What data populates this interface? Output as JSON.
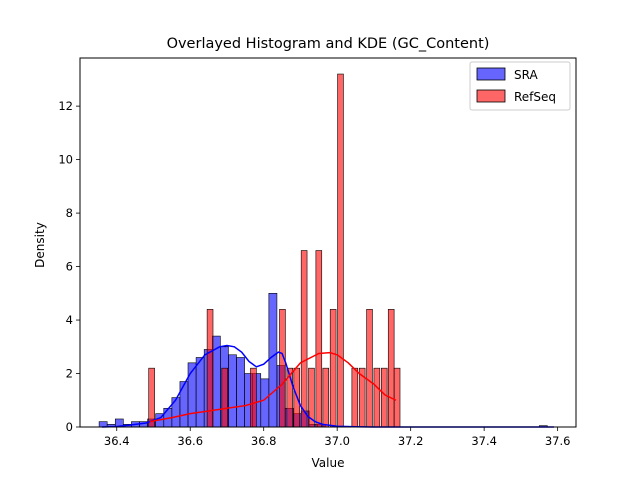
{
  "chart_data": {
    "type": "histogram",
    "title": "Overlayed Histogram and KDE (GC_Content)",
    "xlabel": "Value",
    "ylabel": "Density",
    "xlim": [
      36.3,
      37.65
    ],
    "ylim": [
      0,
      13.8
    ],
    "xticks": [
      36.4,
      36.6,
      36.8,
      37.0,
      37.2,
      37.4,
      37.6
    ],
    "xtick_labels": [
      "36.4",
      "36.6",
      "36.8",
      "37.0",
      "37.2",
      "37.4",
      "37.6"
    ],
    "yticks": [
      0,
      2,
      4,
      6,
      8,
      10,
      12
    ],
    "ytick_labels": [
      "0",
      "2",
      "4",
      "6",
      "8",
      "10",
      "12"
    ],
    "grid": false,
    "legend_position": "upper right",
    "series": [
      {
        "name": "SRA",
        "color": "#0000ff",
        "fill_alpha": 0.6,
        "bin_width": 0.022,
        "bins": [
          {
            "x": 36.352,
            "value": 0.2
          },
          {
            "x": 36.374,
            "value": 0.1
          },
          {
            "x": 36.396,
            "value": 0.3
          },
          {
            "x": 36.418,
            "value": 0.1
          },
          {
            "x": 36.44,
            "value": 0.2
          },
          {
            "x": 36.462,
            "value": 0.2
          },
          {
            "x": 36.484,
            "value": 0.3
          },
          {
            "x": 36.506,
            "value": 0.5
          },
          {
            "x": 36.528,
            "value": 0.7
          },
          {
            "x": 36.55,
            "value": 1.1
          },
          {
            "x": 36.572,
            "value": 1.7
          },
          {
            "x": 36.594,
            "value": 2.4
          },
          {
            "x": 36.616,
            "value": 2.6
          },
          {
            "x": 36.638,
            "value": 2.9
          },
          {
            "x": 36.66,
            "value": 3.4
          },
          {
            "x": 36.682,
            "value": 3.0
          },
          {
            "x": 36.704,
            "value": 2.7
          },
          {
            "x": 36.726,
            "value": 2.6
          },
          {
            "x": 36.748,
            "value": 2.0
          },
          {
            "x": 36.77,
            "value": 2.0
          },
          {
            "x": 36.792,
            "value": 1.8
          },
          {
            "x": 36.814,
            "value": 5.0
          },
          {
            "x": 36.836,
            "value": 2.3
          },
          {
            "x": 36.858,
            "value": 0.7
          },
          {
            "x": 36.88,
            "value": 0.5
          },
          {
            "x": 36.902,
            "value": 0.6
          },
          {
            "x": 36.924,
            "value": 0.1
          },
          {
            "x": 36.946,
            "value": 0.1
          },
          {
            "x": 37.55,
            "value": 0.05
          }
        ],
        "kde": {
          "x": [
            36.36,
            36.4,
            36.44,
            36.48,
            36.52,
            36.56,
            36.6,
            36.64,
            36.68,
            36.7,
            36.72,
            36.74,
            36.76,
            36.78,
            36.8,
            36.82,
            36.84,
            36.85,
            36.86,
            36.88,
            36.9,
            36.92,
            36.94,
            36.96,
            37.0,
            37.05,
            37.1,
            37.2,
            37.3,
            37.4,
            37.5,
            37.59
          ],
          "y": [
            0.0,
            0.02,
            0.08,
            0.15,
            0.35,
            1.0,
            2.0,
            2.7,
            3.0,
            3.05,
            3.0,
            2.8,
            2.45,
            2.25,
            2.35,
            2.6,
            2.8,
            2.75,
            2.4,
            1.5,
            0.8,
            0.4,
            0.2,
            0.1,
            0.03,
            0.01,
            0.0,
            0.0,
            0.0,
            0.0,
            0.0,
            0.0
          ]
        }
      },
      {
        "name": "RefSeq",
        "color": "#ff0000",
        "fill_alpha": 0.6,
        "bin_width": 0.016,
        "bins": [
          {
            "x": 36.487,
            "value": 2.2
          },
          {
            "x": 36.646,
            "value": 4.4
          },
          {
            "x": 36.686,
            "value": 2.2
          },
          {
            "x": 36.764,
            "value": 2.2
          },
          {
            "x": 36.843,
            "value": 4.4
          },
          {
            "x": 36.863,
            "value": 2.2
          },
          {
            "x": 36.882,
            "value": 2.2
          },
          {
            "x": 36.902,
            "value": 6.6
          },
          {
            "x": 36.922,
            "value": 2.2
          },
          {
            "x": 36.942,
            "value": 6.6
          },
          {
            "x": 36.961,
            "value": 2.2
          },
          {
            "x": 36.981,
            "value": 4.4
          },
          {
            "x": 37.001,
            "value": 13.2
          },
          {
            "x": 37.04,
            "value": 2.2
          },
          {
            "x": 37.06,
            "value": 2.2
          },
          {
            "x": 37.08,
            "value": 4.4
          },
          {
            "x": 37.1,
            "value": 2.2
          },
          {
            "x": 37.12,
            "value": 2.2
          },
          {
            "x": 37.139,
            "value": 4.4
          },
          {
            "x": 37.155,
            "value": 2.2
          }
        ],
        "kde": {
          "x": [
            36.49,
            36.55,
            36.6,
            36.65,
            36.7,
            36.75,
            36.8,
            36.85,
            36.9,
            36.95,
            36.98,
            37.0,
            37.03,
            37.06,
            37.1,
            37.13,
            37.16
          ],
          "y": [
            0.2,
            0.35,
            0.5,
            0.6,
            0.7,
            0.8,
            1.0,
            1.6,
            2.4,
            2.75,
            2.78,
            2.7,
            2.4,
            2.0,
            1.6,
            1.2,
            1.0
          ]
        }
      }
    ]
  }
}
